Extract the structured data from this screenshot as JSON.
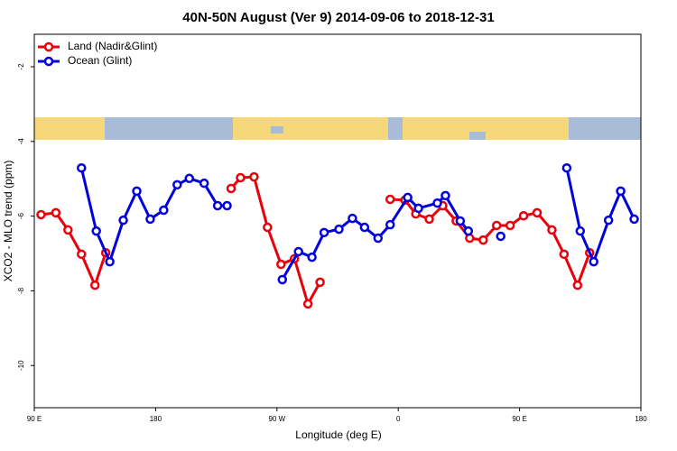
{
  "chart_data": {
    "type": "line",
    "title": "40N-50N August (Ver 9)   2014-09-06 to 2018-12-31",
    "x_label": "Longitude (deg E)",
    "y_label": "XCO2 - MLO trend (ppm)",
    "xlim": [
      90,
      540
    ],
    "ylim": [
      -11.13,
      -1.13
    ],
    "xticks": [
      {
        "value": 90,
        "label": "90 E"
      },
      180,
      {
        "value": 270,
        "label": "90 W"
      },
      {
        "value": 360,
        "label": "0"
      },
      {
        "value": 450,
        "label": "90 E"
      },
      {
        "value": 540,
        "label": "180"
      }
    ],
    "yticks": [
      -10,
      -8,
      -6,
      -4,
      -2
    ],
    "legend": "top-left",
    "series": [
      {
        "name": "Land (Nadir&Glint)",
        "color": "#e8000b",
        "x": [
          95,
          106,
          115,
          125,
          135,
          143,
          null,
          236,
          243,
          253,
          263,
          273,
          283,
          293,
          302,
          null,
          354,
          365,
          373,
          383,
          393,
          403,
          413,
          423,
          433,
          443,
          453,
          463,
          474,
          483,
          493,
          502
        ],
        "values": [
          -5.96,
          -5.91,
          -6.37,
          -7.02,
          -7.85,
          -6.98,
          null,
          -5.26,
          -4.97,
          -4.95,
          -6.3,
          -7.29,
          -7.14,
          -8.35,
          -7.77,
          null,
          -5.55,
          -5.57,
          -5.94,
          -6.08,
          -5.72,
          -6.13,
          -6.59,
          -6.64,
          -6.25,
          -6.25,
          -5.99,
          -5.91,
          -6.37,
          -7.02,
          -7.85,
          -6.98
        ]
      },
      {
        "name": "Ocean (Glint)",
        "color": "#0000dd",
        "x": [
          125,
          136,
          146,
          156,
          166,
          176,
          186,
          196,
          205,
          216,
          226,
          233,
          null,
          274,
          286,
          296,
          305,
          316,
          326,
          335,
          345,
          354,
          367,
          375,
          389,
          395,
          406,
          412,
          null,
          436,
          null,
          485,
          495,
          505,
          516,
          525,
          535
        ],
        "values": [
          -4.71,
          -6.4,
          -7.22,
          -6.11,
          -5.33,
          -6.08,
          -5.84,
          -5.16,
          -4.99,
          -5.12,
          -5.72,
          -5.72,
          null,
          -7.7,
          -6.95,
          -7.1,
          -6.44,
          -6.35,
          -6.06,
          -6.3,
          -6.59,
          -6.23,
          -5.5,
          -5.79,
          -5.65,
          -5.45,
          -6.13,
          -6.4,
          null,
          -6.54,
          null,
          -4.71,
          -6.4,
          -7.22,
          -6.11,
          -5.33,
          -6.08
        ]
      }
    ]
  }
}
